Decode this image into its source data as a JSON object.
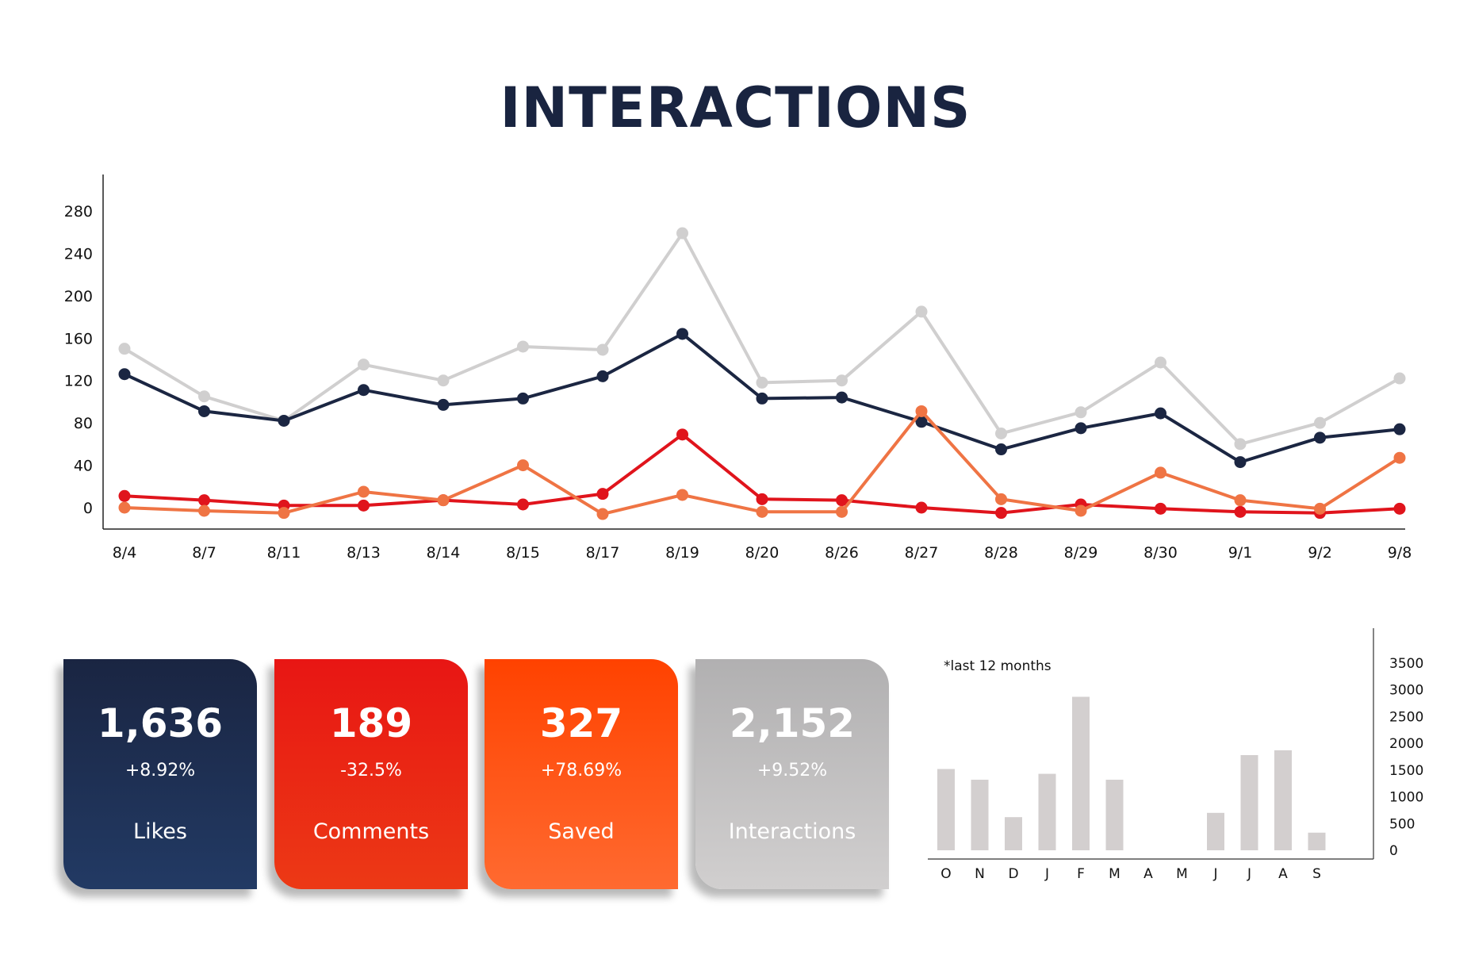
{
  "title": "INTERACTIONS",
  "colors": {
    "title": "#192440",
    "navy": "#1b2642",
    "red": "#e0141c",
    "orange": "#ef7444",
    "gray": "#d0cfcf",
    "bar": "#d3cfcf"
  },
  "cards": [
    {
      "id": "likes",
      "value": "1,636",
      "change": "+8.92%",
      "label": "Likes"
    },
    {
      "id": "comments",
      "value": "189",
      "change": "-32.5%",
      "label": "Comments"
    },
    {
      "id": "saved",
      "value": "327",
      "change": "+78.69%",
      "label": "Saved"
    },
    {
      "id": "interactions",
      "value": "2,152",
      "change": "+9.52%",
      "label": "Interactions"
    }
  ],
  "chart_data": [
    {
      "type": "line",
      "title": "",
      "xlabel": "",
      "ylabel": "",
      "categories": [
        "8/4",
        "8/7",
        "8/11",
        "8/13",
        "8/14",
        "8/15",
        "8/17",
        "8/19",
        "8/20",
        "8/26",
        "8/27",
        "8/28",
        "8/29",
        "8/30",
        "9/1",
        "9/2",
        "9/8"
      ],
      "yticks": [
        0,
        40,
        80,
        120,
        160,
        200,
        240,
        280
      ],
      "ylim": [
        -20,
        300
      ],
      "grid": false,
      "series": [
        {
          "color": "#d0cfcf",
          "values": [
            150,
            105,
            82,
            135,
            120,
            152,
            149,
            259,
            118,
            120,
            185,
            70,
            90,
            137,
            60,
            80,
            122
          ]
        },
        {
          "color": "#1b2642",
          "values": [
            126,
            91,
            82,
            111,
            97,
            103,
            124,
            164,
            103,
            104,
            81,
            55,
            75,
            89,
            43,
            66,
            74
          ]
        },
        {
          "color": "#e0141c",
          "values": [
            11,
            7,
            2,
            2,
            7,
            3,
            13,
            69,
            8,
            7,
            0,
            -5,
            3,
            -1,
            -4,
            -5,
            -1
          ]
        },
        {
          "color": "#ef7444",
          "values": [
            0,
            -3,
            -5,
            15,
            7,
            40,
            -6,
            12,
            -4,
            -4,
            91,
            8,
            -3,
            33,
            7,
            -1,
            47
          ]
        }
      ]
    },
    {
      "type": "bar",
      "title": "",
      "annotation": "*last 12 months",
      "categories": [
        "O",
        "N",
        "D",
        "J",
        "F",
        "M",
        "A",
        "M",
        "J",
        "J",
        "A",
        "S"
      ],
      "values": [
        1520,
        1320,
        620,
        1430,
        2870,
        1320,
        0,
        0,
        700,
        1780,
        1870,
        330
      ],
      "yticks": [
        0,
        500,
        1000,
        1500,
        2000,
        2500,
        3000,
        3500
      ],
      "ylim": [
        0,
        3500
      ],
      "yaxis_position": "right",
      "grid": false
    }
  ]
}
